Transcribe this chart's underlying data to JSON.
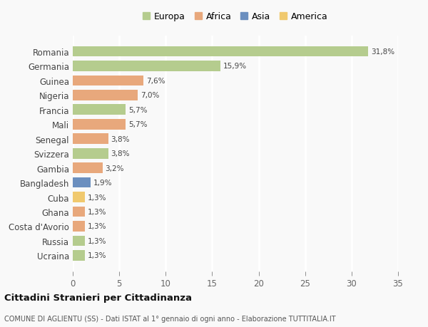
{
  "countries": [
    "Romania",
    "Germania",
    "Guinea",
    "Nigeria",
    "Francia",
    "Mali",
    "Senegal",
    "Svizzera",
    "Gambia",
    "Bangladesh",
    "Cuba",
    "Ghana",
    "Costa d'Avorio",
    "Russia",
    "Ucraina"
  ],
  "values": [
    31.8,
    15.9,
    7.6,
    7.0,
    5.7,
    5.7,
    3.8,
    3.8,
    3.2,
    1.9,
    1.3,
    1.3,
    1.3,
    1.3,
    1.3
  ],
  "labels": [
    "31,8%",
    "15,9%",
    "7,6%",
    "7,0%",
    "5,7%",
    "5,7%",
    "3,8%",
    "3,8%",
    "3,2%",
    "1,9%",
    "1,3%",
    "1,3%",
    "1,3%",
    "1,3%",
    "1,3%"
  ],
  "colors": [
    "#b5cc8e",
    "#b5cc8e",
    "#e8a87c",
    "#e8a87c",
    "#b5cc8e",
    "#e8a87c",
    "#e8a87c",
    "#b5cc8e",
    "#e8a87c",
    "#6b8fbf",
    "#f0c96e",
    "#e8a87c",
    "#e8a87c",
    "#b5cc8e",
    "#b5cc8e"
  ],
  "legend_labels": [
    "Europa",
    "Africa",
    "Asia",
    "America"
  ],
  "legend_colors": [
    "#b5cc8e",
    "#e8a87c",
    "#6b8fbf",
    "#f0c96e"
  ],
  "title1": "Cittadini Stranieri per Cittadinanza",
  "title2": "COMUNE DI AGLIENTU (SS) - Dati ISTAT al 1° gennaio di ogni anno - Elaborazione TUTTITALIA.IT",
  "xlim": [
    0,
    35
  ],
  "xticks": [
    0,
    5,
    10,
    15,
    20,
    25,
    30,
    35
  ],
  "background_color": "#f9f9f9",
  "grid_color": "#ffffff",
  "bar_height": 0.72
}
